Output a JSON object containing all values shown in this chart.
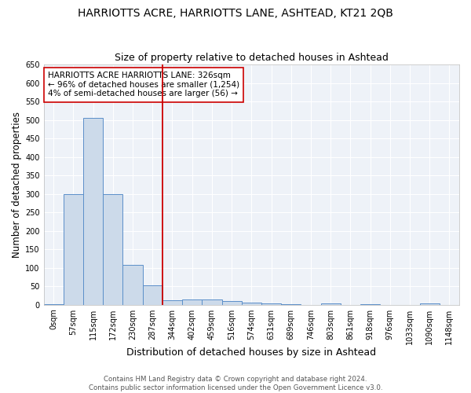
{
  "title": "HARRIOTTS ACRE, HARRIOTTS LANE, ASHTEAD, KT21 2QB",
  "subtitle": "Size of property relative to detached houses in Ashtead",
  "xlabel": "Distribution of detached houses by size in Ashtead",
  "ylabel": "Number of detached properties",
  "footer_line1": "Contains HM Land Registry data © Crown copyright and database right 2024.",
  "footer_line2": "Contains public sector information licensed under the Open Government Licence v3.0.",
  "bar_labels": [
    "0sqm",
    "57sqm",
    "115sqm",
    "172sqm",
    "230sqm",
    "287sqm",
    "344sqm",
    "402sqm",
    "459sqm",
    "516sqm",
    "574sqm",
    "631sqm",
    "689sqm",
    "746sqm",
    "803sqm",
    "861sqm",
    "918sqm",
    "976sqm",
    "1033sqm",
    "1090sqm",
    "1148sqm"
  ],
  "bar_values": [
    2,
    300,
    505,
    300,
    108,
    53,
    13,
    15,
    14,
    10,
    5,
    4,
    2,
    0,
    3,
    0,
    2,
    0,
    0,
    3,
    0
  ],
  "bar_color": "#ccdaea",
  "bar_edge_color": "#5b8fc9",
  "bar_edge_width": 0.7,
  "red_line_x": 5.5,
  "red_line_color": "#cc0000",
  "annotation_text": "HARRIOTTS ACRE HARRIOTTS LANE: 326sqm\n← 96% of detached houses are smaller (1,254)\n4% of semi-detached houses are larger (56) →",
  "ylim": [
    0,
    650
  ],
  "yticks": [
    0,
    50,
    100,
    150,
    200,
    250,
    300,
    350,
    400,
    450,
    500,
    550,
    600,
    650
  ],
  "bg_color": "#ffffff",
  "plot_bg_color": "#eef2f8",
  "grid_color": "#ffffff",
  "title_fontsize": 10,
  "subtitle_fontsize": 9,
  "xlabel_fontsize": 9,
  "ylabel_fontsize": 8.5,
  "tick_fontsize": 7,
  "annotation_fontsize": 7.5,
  "footer_fontsize": 6.2
}
